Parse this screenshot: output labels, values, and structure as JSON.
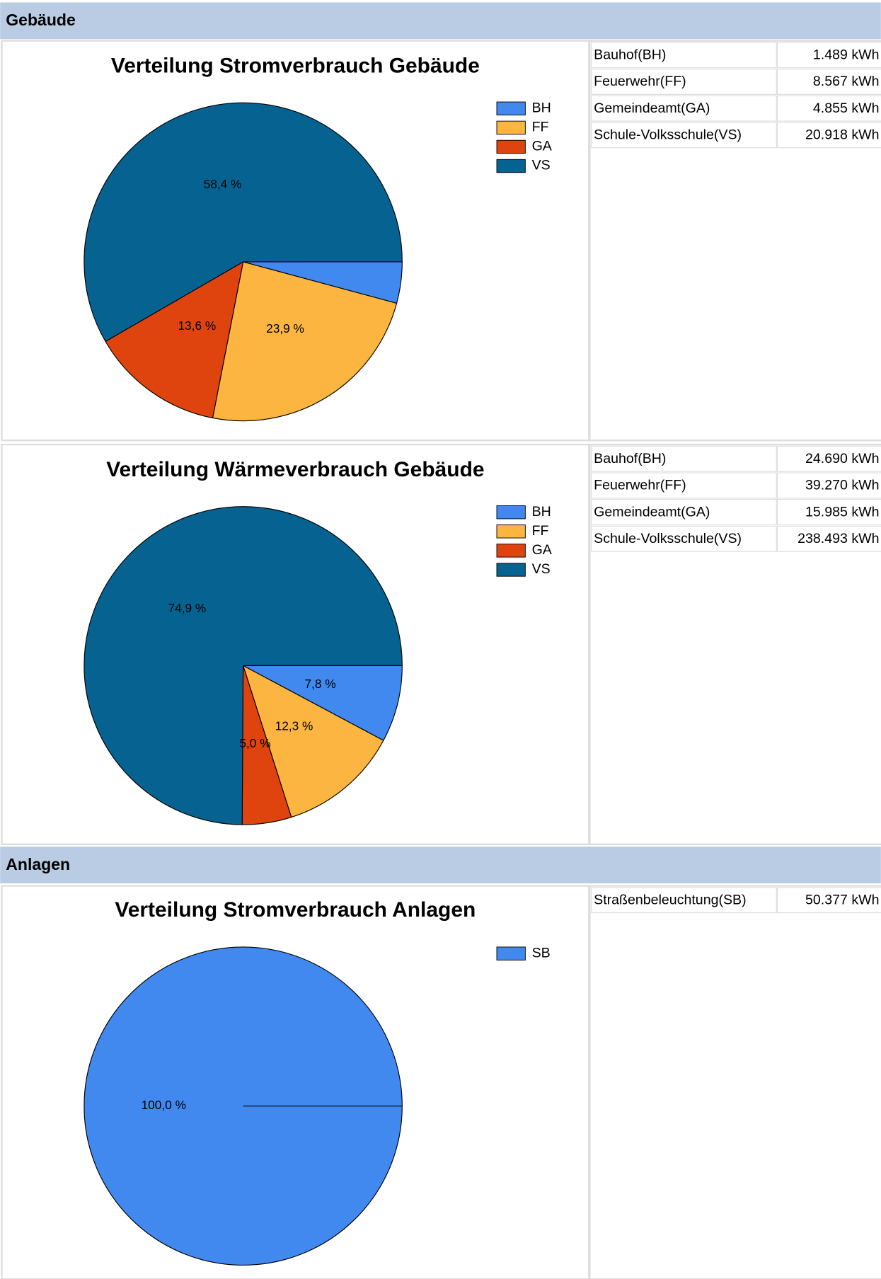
{
  "sections": [
    {
      "title": "Gebäude"
    },
    {
      "title": "Anlagen"
    }
  ],
  "tables": [
    {
      "rows": [
        [
          "Bauhof(BH)",
          "1.489 kWh"
        ],
        [
          "Feuerwehr(FF)",
          "8.567 kWh"
        ],
        [
          "Gemeindeamt(GA)",
          "4.855 kWh"
        ],
        [
          "Schule-Volksschule(VS)",
          "20.918 kWh"
        ]
      ]
    },
    {
      "rows": [
        [
          "Bauhof(BH)",
          "24.690 kWh"
        ],
        [
          "Feuerwehr(FF)",
          "39.270 kWh"
        ],
        [
          "Gemeindeamt(GA)",
          "15.985 kWh"
        ],
        [
          "Schule-Volksschule(VS)",
          "238.493 kWh"
        ]
      ]
    },
    {
      "rows": [
        [
          "Straßenbeleuchtung(SB)",
          "50.377 kWh"
        ]
      ]
    }
  ],
  "chart_data": [
    {
      "type": "pie",
      "title": "Verteilung Stromverbrauch Gebäude",
      "categories": [
        "BH",
        "FF",
        "GA",
        "VS"
      ],
      "values": [
        4.2,
        23.9,
        13.6,
        58.4
      ],
      "value_labels": [
        null,
        "23,9 %",
        "13,6 %",
        "58,4 %"
      ],
      "colors": [
        "#4189ee",
        "#fbb540",
        "#e0440e",
        "#066391"
      ]
    },
    {
      "type": "pie",
      "title": "Verteilung Wärmeverbrauch Gebäude",
      "categories": [
        "BH",
        "FF",
        "GA",
        "VS"
      ],
      "values": [
        7.8,
        12.3,
        5.0,
        74.9
      ],
      "value_labels": [
        "7,8 %",
        "12,3 %",
        "5,0 %",
        "74,9 %"
      ],
      "colors": [
        "#4189ee",
        "#fbb540",
        "#e0440e",
        "#066391"
      ]
    },
    {
      "type": "pie",
      "title": "Verteilung Stromverbrauch Anlagen",
      "categories": [
        "SB"
      ],
      "values": [
        100
      ],
      "value_labels": [
        "100,0 %"
      ],
      "colors": [
        "#4189ee"
      ]
    }
  ]
}
